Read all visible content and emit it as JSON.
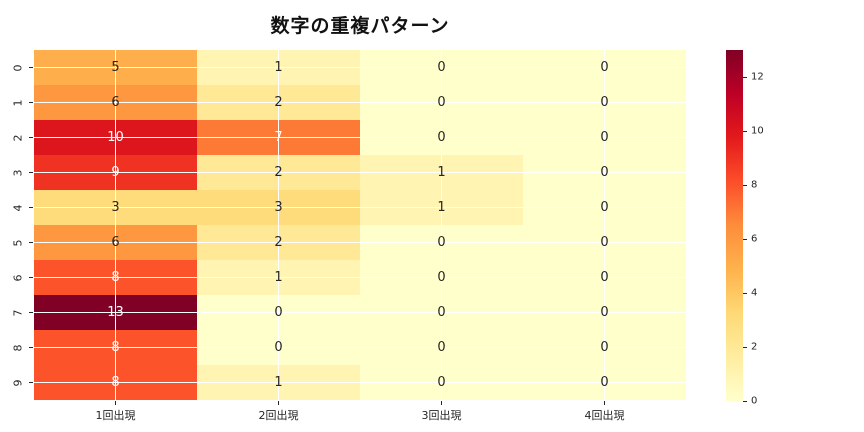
{
  "chart_data": {
    "type": "heatmap",
    "title": "数字の重複パターン",
    "x_tick_labels": [
      "1回出現",
      "2回出現",
      "3回出現",
      "4回出現"
    ],
    "y_tick_labels": [
      "0",
      "1",
      "2",
      "3",
      "4",
      "5",
      "6",
      "7",
      "8",
      "9"
    ],
    "values": [
      [
        5,
        1,
        0,
        0
      ],
      [
        6,
        2,
        0,
        0
      ],
      [
        10,
        7,
        0,
        0
      ],
      [
        9,
        2,
        1,
        0
      ],
      [
        3,
        3,
        1,
        0
      ],
      [
        6,
        2,
        0,
        0
      ],
      [
        8,
        1,
        0,
        0
      ],
      [
        13,
        0,
        0,
        0
      ],
      [
        8,
        0,
        0,
        0
      ],
      [
        8,
        1,
        0,
        0
      ]
    ],
    "vmin": 0,
    "vmax": 13,
    "annotations": true,
    "grid": true,
    "colormap_name": "YlOrRd",
    "colormap_stops": [
      "#ffffcc",
      "#ffeda0",
      "#fed976",
      "#feb24c",
      "#fd8d3c",
      "#fc4e2a",
      "#e31a1c",
      "#bd0026",
      "#800026"
    ],
    "colorbar_ticks": [
      0,
      2,
      4,
      6,
      8,
      10,
      12
    ],
    "colorbar_position": "right",
    "colors": {
      "grid_line": "#ffffff",
      "annotation_dark": "#262626",
      "annotation_light": "#ffffff",
      "tick_text": "#262626",
      "background": "#ffffff"
    }
  }
}
